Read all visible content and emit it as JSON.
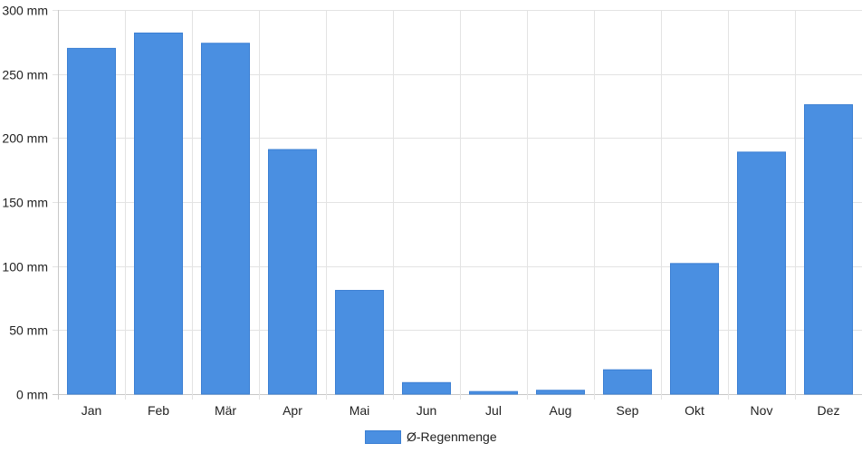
{
  "chart_data": {
    "type": "bar",
    "categories": [
      "Jan",
      "Feb",
      "Mär",
      "Apr",
      "Mai",
      "Jun",
      "Jul",
      "Aug",
      "Sep",
      "Okt",
      "Nov",
      "Dez"
    ],
    "series": [
      {
        "name": "Ø-Regenmenge",
        "values": [
          270,
          282,
          274,
          191,
          81,
          9,
          2,
          3,
          19,
          102,
          189,
          226
        ],
        "color": "#4a8fe1"
      }
    ],
    "y_ticks": [
      "0 mm",
      "50 mm",
      "100 mm",
      "150 mm",
      "200 mm",
      "250 mm",
      "300 mm"
    ],
    "ylim": [
      0,
      300
    ],
    "grid": true,
    "legend_position": "bottom"
  }
}
